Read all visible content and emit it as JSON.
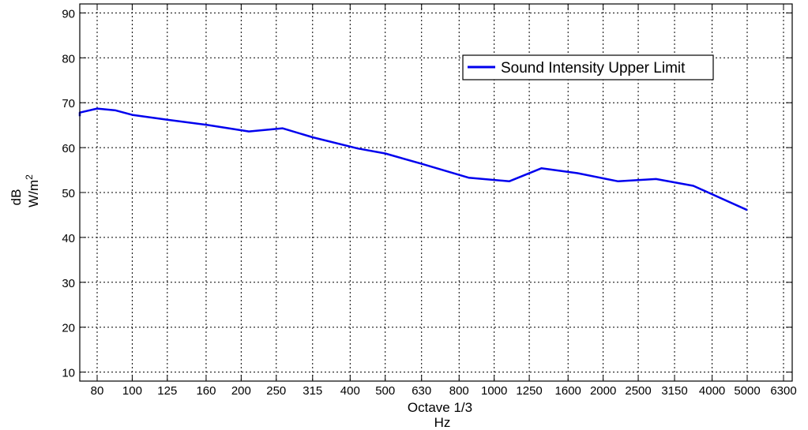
{
  "chart_data": {
    "type": "line",
    "x_axis": {
      "label_line1": "Octave 1/3",
      "label_line2": "Hz",
      "tick_labels": [
        "80",
        "100",
        "125",
        "160",
        "200",
        "250",
        "315",
        "400",
        "500",
        "630",
        "800",
        "1000",
        "1250",
        "1600",
        "2000",
        "2500",
        "3150",
        "4000",
        "5000",
        "6300"
      ],
      "grid": true
    },
    "y_axis": {
      "label_line1": "dB",
      "label_unit_base": "W/m",
      "label_unit_exp": "2",
      "ylim": [
        8,
        92
      ],
      "ticks": [
        10,
        20,
        30,
        40,
        50,
        60,
        70,
        80,
        90
      ],
      "grid": true
    },
    "legend": {
      "position": "top-right"
    },
    "series": [
      {
        "name": "Sound Intensity Upper Limit",
        "color": "#0000ee",
        "points": [
          {
            "x": "63",
            "y": 67.0
          },
          {
            "x": "70",
            "y": 67.8
          },
          {
            "x": "80",
            "y": 68.7
          },
          {
            "x": "90",
            "y": 68.3
          },
          {
            "x": "100",
            "y": 67.3
          },
          {
            "x": "125",
            "y": 66.2
          },
          {
            "x": "160",
            "y": 65.1
          },
          {
            "x": "210",
            "y": 63.6
          },
          {
            "x": "260",
            "y": 64.3
          },
          {
            "x": "315",
            "y": 62.3
          },
          {
            "x": "420",
            "y": 59.8
          },
          {
            "x": "500",
            "y": 58.7
          },
          {
            "x": "630",
            "y": 56.4
          },
          {
            "x": "850",
            "y": 53.3
          },
          {
            "x": "1100",
            "y": 52.5
          },
          {
            "x": "1350",
            "y": 55.4
          },
          {
            "x": "1700",
            "y": 54.3
          },
          {
            "x": "2200",
            "y": 52.5
          },
          {
            "x": "2800",
            "y": 53.0
          },
          {
            "x": "3550",
            "y": 51.5
          },
          {
            "x": "5000",
            "y": 46.1
          }
        ]
      }
    ]
  }
}
